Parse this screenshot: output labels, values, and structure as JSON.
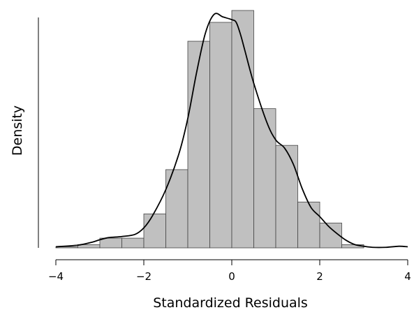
{
  "chart_data": {
    "type": "bar",
    "subtype": "histogram-with-density-curve",
    "title": "",
    "xlabel": "Standardized Residuals",
    "ylabel": "Density",
    "xlim": [
      -4,
      4
    ],
    "ylim": [
      0,
      0.44
    ],
    "x_ticks": [
      -4,
      -2,
      0,
      2,
      4
    ],
    "x_tick_labels": [
      "−4",
      "−2",
      "0",
      "2",
      "4"
    ],
    "y_ticks_shown": false,
    "grid": false,
    "legend": "none",
    "bar_fill": "#c0c0c0",
    "bar_stroke": "#444444",
    "curve_color": "#000000",
    "bins": [
      {
        "x0": -4.0,
        "x1": -3.5,
        "density": 0.002
      },
      {
        "x0": -3.5,
        "x1": -3.0,
        "density": 0.006
      },
      {
        "x0": -3.0,
        "x1": -2.5,
        "density": 0.018
      },
      {
        "x0": -2.5,
        "x1": -2.0,
        "density": 0.018
      },
      {
        "x0": -2.0,
        "x1": -1.5,
        "density": 0.063
      },
      {
        "x0": -1.5,
        "x1": -1.0,
        "density": 0.145
      },
      {
        "x0": -1.0,
        "x1": -0.5,
        "density": 0.383
      },
      {
        "x0": -0.5,
        "x1": 0.0,
        "density": 0.418
      },
      {
        "x0": 0.0,
        "x1": 0.5,
        "density": 0.44
      },
      {
        "x0": 0.5,
        "x1": 1.0,
        "density": 0.258
      },
      {
        "x0": 1.0,
        "x1": 1.5,
        "density": 0.19
      },
      {
        "x0": 1.5,
        "x1": 2.0,
        "density": 0.085
      },
      {
        "x0": 2.0,
        "x1": 2.5,
        "density": 0.046
      },
      {
        "x0": 2.5,
        "x1": 3.0,
        "density": 0.006
      },
      {
        "x0": 3.0,
        "x1": 3.5,
        "density": 0.0
      },
      {
        "x0": 3.5,
        "x1": 4.0,
        "density": 0.0
      }
    ],
    "density_curve": {
      "x": [
        -4.0,
        -3.5,
        -3.2,
        -3.0,
        -2.8,
        -2.5,
        -2.2,
        -2.0,
        -1.8,
        -1.5,
        -1.2,
        -1.0,
        -0.8,
        -0.6,
        -0.4,
        -0.2,
        0.0,
        0.1,
        0.2,
        0.3,
        0.5,
        0.8,
        1.0,
        1.2,
        1.4,
        1.6,
        1.8,
        2.0,
        2.2,
        2.4,
        2.6,
        2.8,
        3.0,
        3.2,
        3.5,
        3.8,
        4.0
      ],
      "y": [
        0.002,
        0.005,
        0.01,
        0.015,
        0.019,
        0.021,
        0.025,
        0.037,
        0.06,
        0.108,
        0.175,
        0.24,
        0.325,
        0.398,
        0.433,
        0.428,
        0.423,
        0.418,
        0.395,
        0.365,
        0.305,
        0.232,
        0.2,
        0.185,
        0.155,
        0.11,
        0.075,
        0.058,
        0.04,
        0.026,
        0.014,
        0.006,
        0.003,
        0.001,
        0.001,
        0.003,
        0.002
      ]
    }
  }
}
